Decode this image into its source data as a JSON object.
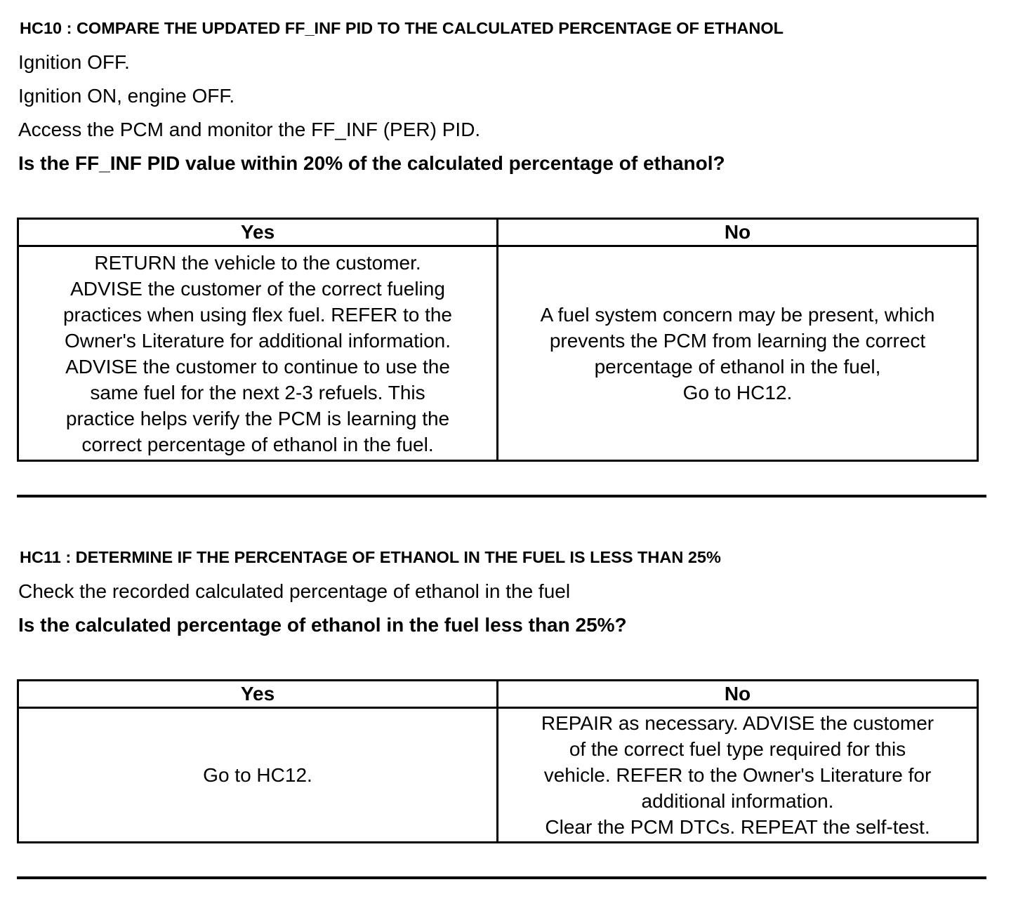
{
  "sections": [
    {
      "heading": "HC10 : COMPARE THE UPDATED FF_INF  PID TO THE CALCULATED PERCENTAGE OF ETHANOL",
      "steps": [
        "Ignition OFF.",
        "Ignition ON, engine OFF.",
        "Access the PCM and monitor the  FF_INF (PER) PID."
      ],
      "question": "Is the FF_INF  PID value within 20% of the calculated percentage of ethanol?",
      "table": {
        "yes_label": "Yes",
        "no_label": "No",
        "yes_lines": [
          "RETURN the vehicle to the customer.",
          "ADVISE the customer of the correct fueling",
          "practices when using flex fuel. REFER to the",
          "Owner's Literature for additional information.",
          "ADVISE the customer to continue to use the",
          "same fuel for the next 2-3 refuels. This",
          "practice helps verify the PCM is learning the",
          "correct percentage of ethanol in the fuel."
        ],
        "no_lines": [
          "A fuel system concern may be present, which",
          "prevents the PCM from learning the correct",
          "percentage of ethanol in the fuel,",
          "Go to HC12."
        ]
      }
    },
    {
      "heading": "HC11 : DETERMINE IF THE PERCENTAGE OF ETHANOL IN THE FUEL IS LESS THAN 25%",
      "steps": [
        "Check the recorded calculated percentage of ethanol in the fuel"
      ],
      "question": "Is the calculated percentage of ethanol in the fuel less than 25%?",
      "table": {
        "yes_label": "Yes",
        "no_label": "No",
        "yes_lines": [
          "Go to HC12."
        ],
        "no_lines": [
          "REPAIR as necessary. ADVISE the customer",
          "of the correct fuel type required for this",
          "vehicle. REFER to the Owner's Literature for",
          "additional information.",
          "Clear the PCM DTCs. REPEAT the self-test."
        ]
      }
    }
  ]
}
